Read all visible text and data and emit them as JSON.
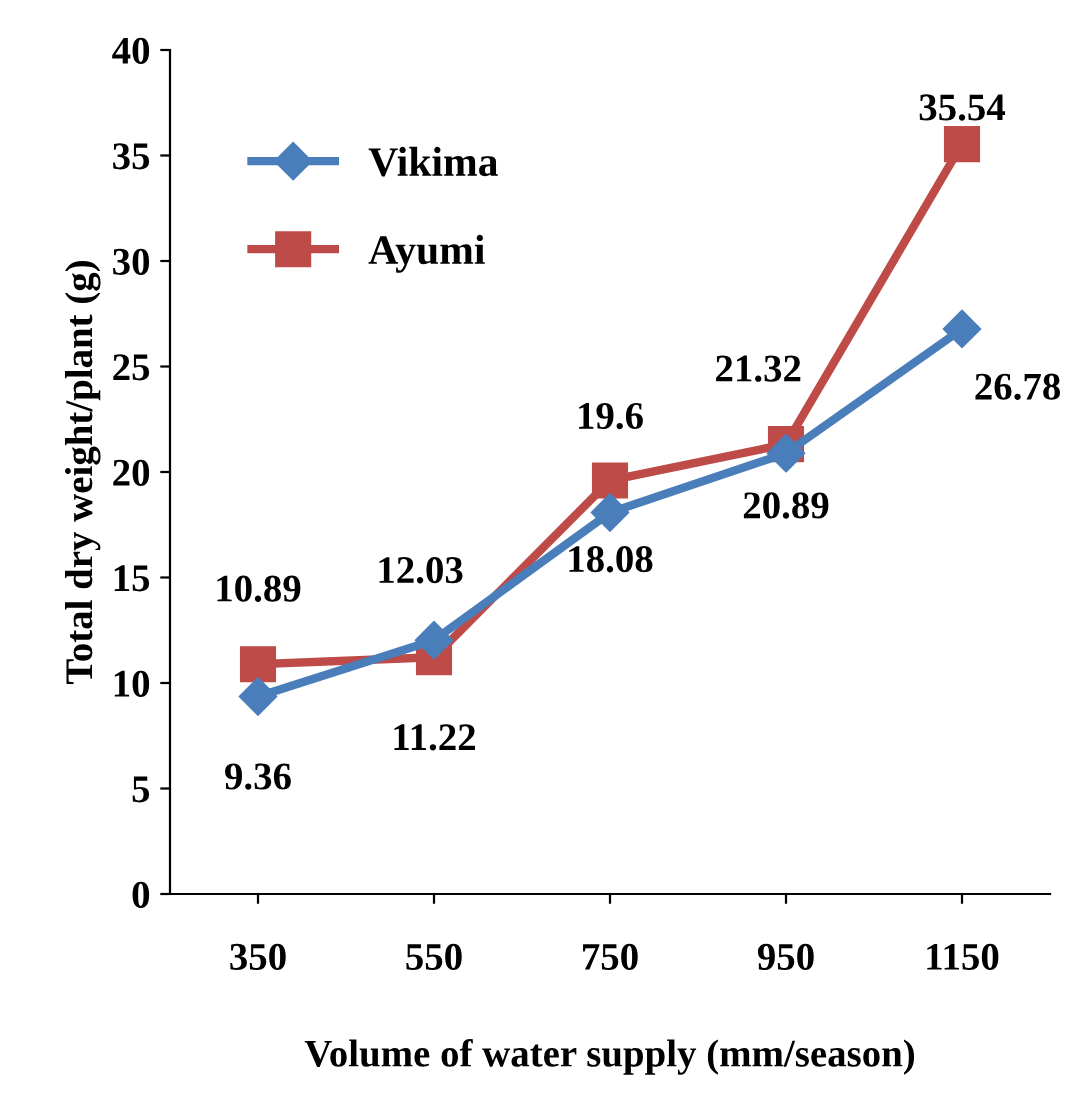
{
  "chart_data": {
    "type": "line",
    "xlabel": "Volume of water supply (mm/season)",
    "ylabel": "Total dry weight/plant (g)",
    "categories": [
      "350",
      "550",
      "750",
      "950",
      "1150"
    ],
    "series": [
      {
        "name": "Vikima",
        "color": "#4a7ebb",
        "marker": "diamond",
        "values": [
          9.36,
          12.03,
          18.08,
          20.89,
          26.78
        ]
      },
      {
        "name": "Ayumi",
        "color": "#be4b48",
        "marker": "square",
        "values": [
          10.89,
          11.22,
          19.6,
          21.32,
          35.54
        ]
      }
    ],
    "ylim": [
      0,
      40
    ],
    "yticks": [
      0,
      5,
      10,
      15,
      20,
      25,
      30,
      35,
      40
    ],
    "grid": false,
    "legend": "top left",
    "data_labels": true
  }
}
